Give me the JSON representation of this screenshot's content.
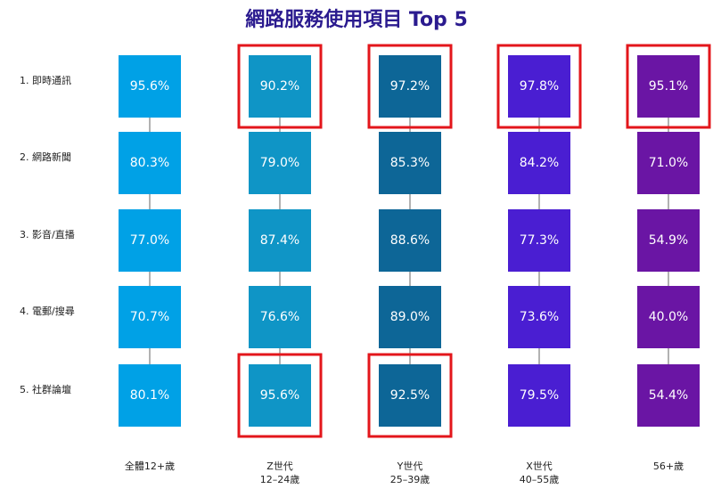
{
  "chart_data": {
    "type": "matrix",
    "title": "網路服務使用項目 Top 5",
    "categories": [
      "1. 即時通訊",
      "2. 網路新聞",
      "3. 影音/直播",
      "4. 電郵/搜尋",
      "5. 社群論壇"
    ],
    "series": [
      {
        "name": [
          "全體12+歲"
        ],
        "color": "#00a1e6",
        "values": [
          95.6,
          80.3,
          77.0,
          70.7,
          80.1
        ],
        "value_labels": [
          "95.6%",
          "80.3%",
          "77.0%",
          "70.7%",
          "80.1%"
        ],
        "highlight": [
          false,
          false,
          false,
          false,
          false
        ]
      },
      {
        "name": [
          "Z世代",
          "12–24歲"
        ],
        "color": "#0f95c6",
        "values": [
          90.2,
          79.0,
          87.4,
          76.6,
          95.6
        ],
        "value_labels": [
          "90.2%",
          "79.0%",
          "87.4%",
          "76.6%",
          "95.6%"
        ],
        "highlight": [
          true,
          false,
          false,
          false,
          true
        ]
      },
      {
        "name": [
          "Y世代",
          "25–39歲"
        ],
        "color": "#0d6697",
        "values": [
          97.2,
          85.3,
          88.6,
          89.0,
          92.5
        ],
        "value_labels": [
          "97.2%",
          "85.3%",
          "88.6%",
          "89.0%",
          "92.5%"
        ],
        "highlight": [
          true,
          false,
          false,
          false,
          true
        ]
      },
      {
        "name": [
          "X世代",
          "40–55歲"
        ],
        "color": "#4a1ed2",
        "values": [
          97.8,
          84.2,
          77.3,
          73.6,
          79.5
        ],
        "value_labels": [
          "97.8%",
          "84.2%",
          "77.3%",
          "73.6%",
          "79.5%"
        ],
        "highlight": [
          true,
          false,
          false,
          false,
          false
        ]
      },
      {
        "name": [
          "56+歲"
        ],
        "color": "#6a15a4",
        "values": [
          95.1,
          71.0,
          54.9,
          40.0,
          54.4
        ],
        "value_labels": [
          "95.1%",
          "71.0%",
          "54.9%",
          "40.0%",
          "54.4%"
        ],
        "highlight": [
          true,
          false,
          false,
          false,
          false
        ]
      }
    ]
  }
}
